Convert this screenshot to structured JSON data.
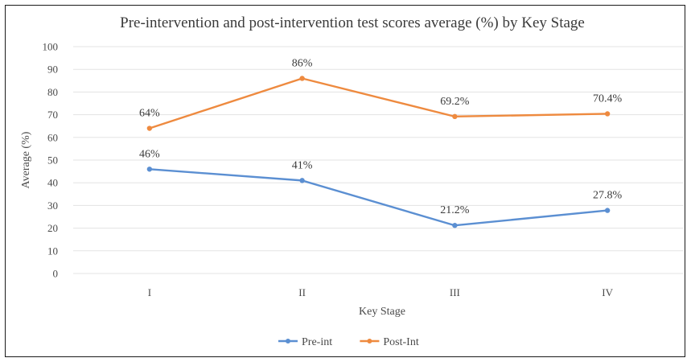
{
  "chart_data": {
    "type": "line",
    "title": "Pre-intervention and post-intervention test scores average (%) by Key Stage",
    "xlabel": "Key Stage",
    "ylabel": "Average (%)",
    "categories": [
      "I",
      "II",
      "III",
      "IV"
    ],
    "ylim": [
      0,
      100
    ],
    "yticks": [
      0,
      10,
      20,
      30,
      40,
      50,
      60,
      70,
      80,
      90,
      100
    ],
    "grid": true,
    "legend_position": "bottom",
    "series": [
      {
        "name": "Pre-int",
        "color": "#5b8fd2",
        "values": [
          46,
          41,
          21.2,
          27.8
        ],
        "labels": [
          "46%",
          "41%",
          "21.2%",
          "27.8%"
        ]
      },
      {
        "name": "Post-Int",
        "color": "#ee8a3f",
        "values": [
          64,
          86,
          69.2,
          70.4
        ],
        "labels": [
          "64%",
          "86%",
          "69.2%",
          "70.4%"
        ]
      }
    ]
  }
}
